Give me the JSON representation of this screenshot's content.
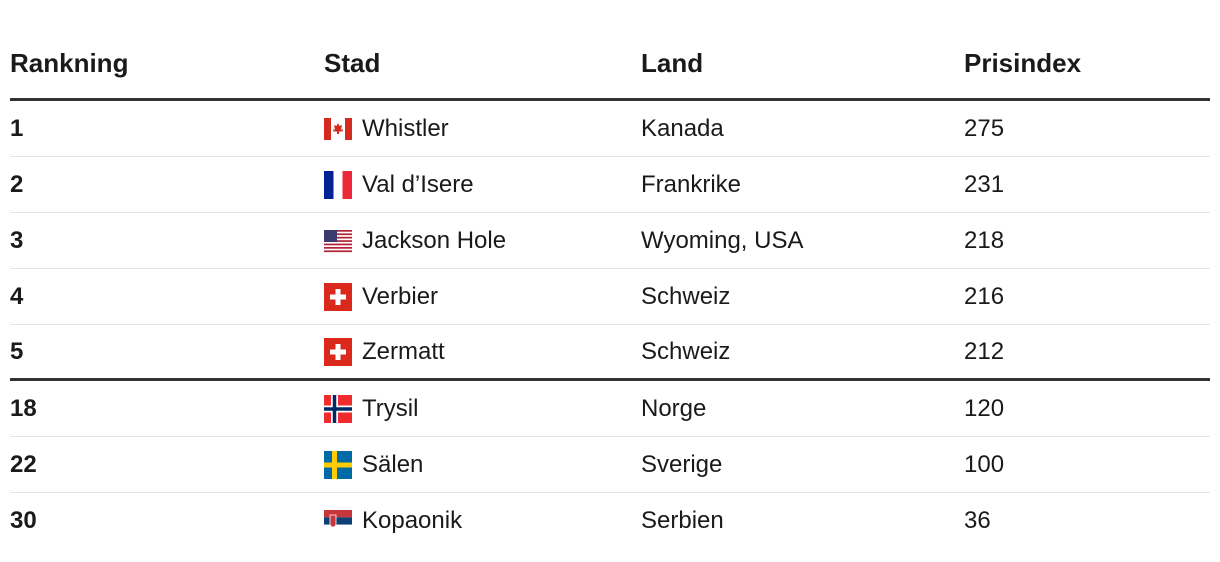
{
  "table": {
    "headers": [
      "Rankning",
      "Stad",
      "Land",
      "Prisindex"
    ],
    "rows": [
      [
        1,
        "Whistler",
        "Kanada",
        275
      ],
      [
        2,
        "Val d’Isere",
        "Frankrike",
        231
      ],
      [
        3,
        "Jackson Hole",
        "Wyoming, USA",
        218
      ],
      [
        4,
        "Verbier",
        "Schweiz",
        216
      ],
      [
        5,
        "Zermatt",
        "Schweiz",
        212
      ],
      [
        18,
        "Trysil",
        "Norge",
        120
      ],
      [
        22,
        "Sälen",
        "Sverige",
        100
      ],
      [
        30,
        "Kopaonik",
        "Serbien",
        36
      ]
    ]
  }
}
